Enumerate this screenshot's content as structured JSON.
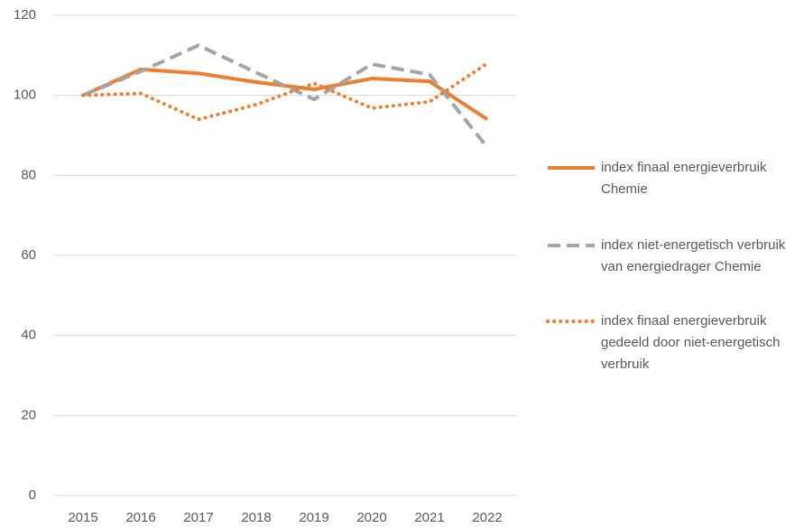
{
  "chart_data": {
    "type": "line",
    "categories": [
      "2015",
      "2016",
      "2017",
      "2018",
      "2019",
      "2020",
      "2021",
      "2022"
    ],
    "series": [
      {
        "name": "index finaal energieverbruik Chemie",
        "color": "#ed7d31",
        "style": "solid",
        "values": [
          100,
          106.5,
          105.5,
          103.3,
          101.5,
          104.2,
          103.5,
          94
        ]
      },
      {
        "name": "index niet-energetisch verbruik van energiedrager Chemie",
        "color": "#a5a5a5",
        "style": "dashed",
        "values": [
          100,
          106,
          112.5,
          105.7,
          99,
          107.8,
          105.2,
          87
        ]
      },
      {
        "name": "index finaal energieverbruik gedeeld door niet-energetisch verbruik",
        "color": "#ed7d31",
        "style": "dotted",
        "values": [
          100,
          100.5,
          94,
          97.7,
          103,
          96.8,
          98.4,
          108
        ]
      }
    ],
    "ylim": [
      0,
      120
    ],
    "yticks": [
      0,
      20,
      40,
      60,
      80,
      100,
      120
    ],
    "grid": true,
    "legend": "right"
  }
}
